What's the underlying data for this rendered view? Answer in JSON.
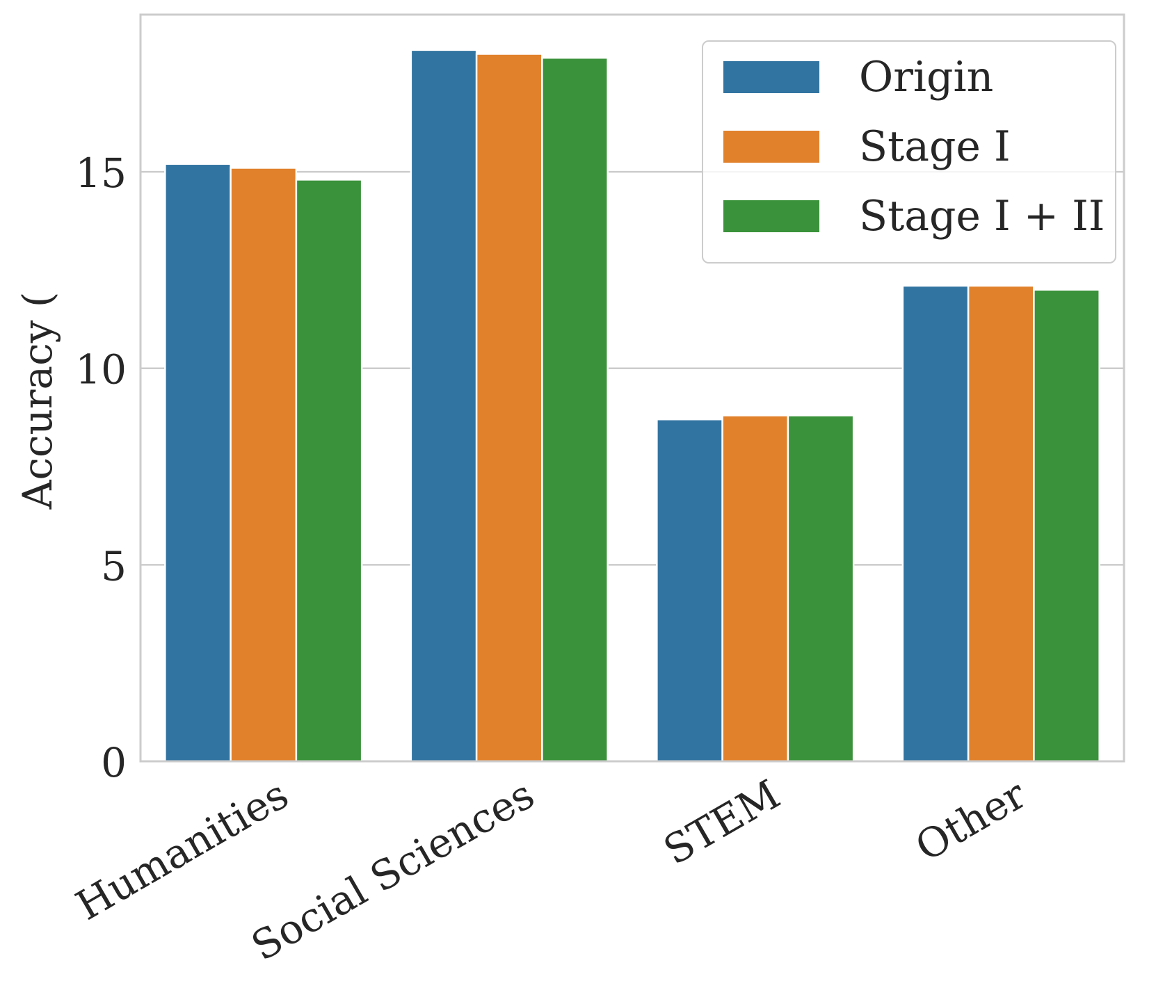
{
  "chart_data": {
    "type": "bar",
    "title": "",
    "xlabel": "",
    "ylabel": "Accuracy (",
    "categories": [
      "Humanities",
      "Social Sciences",
      "STEM",
      "Other"
    ],
    "series": [
      {
        "name": "Origin",
        "color": "#3274a1",
        "values": [
          15.2,
          18.1,
          8.7,
          12.1
        ]
      },
      {
        "name": "Stage I",
        "color": "#e1812c",
        "values": [
          15.1,
          18.0,
          8.8,
          12.1
        ]
      },
      {
        "name": "Stage I + II",
        "color": "#3a923a",
        "values": [
          14.8,
          17.9,
          8.8,
          12.0
        ]
      }
    ],
    "ylim": [
      0,
      19
    ],
    "yticks": [
      0,
      5,
      10,
      15
    ],
    "ytick_labels": [
      "0",
      "5",
      "10",
      "15"
    ],
    "grid": "horizontal",
    "legend_position": "top-right",
    "axis_color": "#cccccc",
    "grid_color": "#cccccc",
    "text_color": "#262626"
  }
}
